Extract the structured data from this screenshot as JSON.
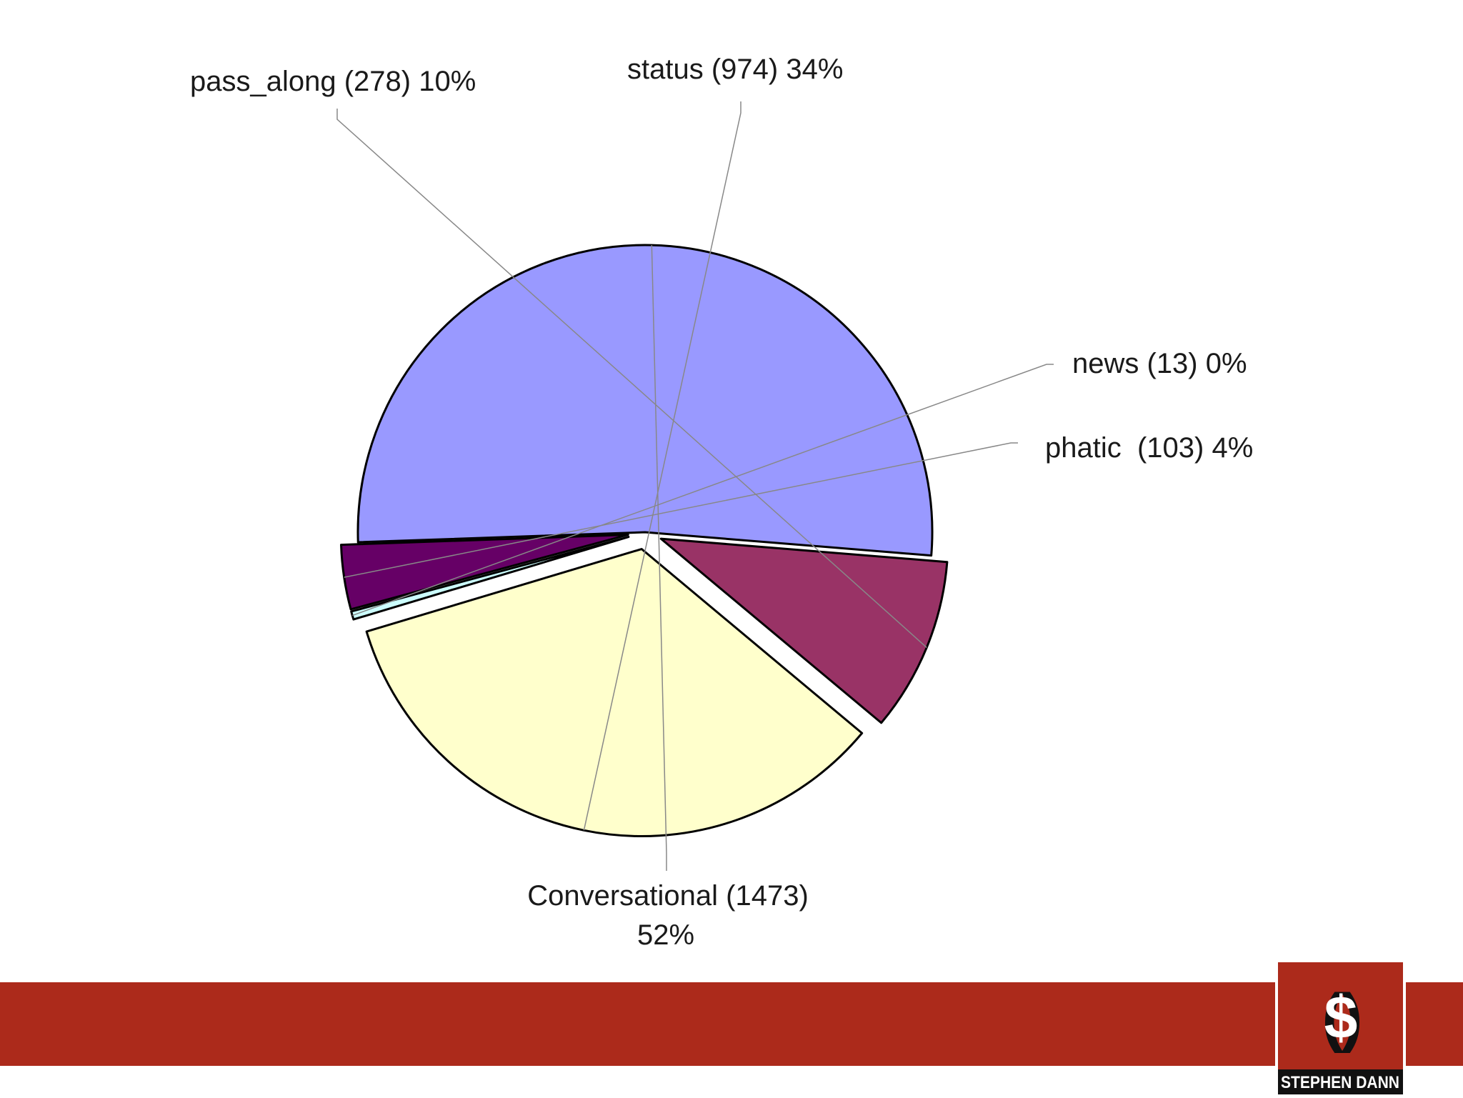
{
  "chart_data": {
    "type": "pie",
    "title": "",
    "slices": [
      {
        "name": "Conversational",
        "value": 1473,
        "percent": 52,
        "color": "#9999ff",
        "label_line1": "Conversational (1473)",
        "label_line2": "52%",
        "exploded": false
      },
      {
        "name": "pass_along",
        "value": 278,
        "percent": 10,
        "color": "#993366",
        "label_line1": "pass_along (278) 10%",
        "label_line2": "",
        "exploded": true
      },
      {
        "name": "status",
        "value": 974,
        "percent": 34,
        "color": "#ffffcc",
        "label_line1": "status (974) 34%",
        "label_line2": "",
        "exploded": true
      },
      {
        "name": "news",
        "value": 13,
        "percent": 0,
        "color": "#ccffff",
        "label_line1": "news (13) 0%",
        "label_line2": "",
        "exploded": true
      },
      {
        "name": "phatic",
        "value": 103,
        "percent": 4,
        "color": "#660066",
        "label_line1": "phatic  (103) 4%",
        "label_line2": "",
        "exploded": true
      }
    ]
  },
  "footer": {
    "bar_color": "#ac2a1b",
    "logo_symbol": "($)",
    "logo_text": "STEPHEN DANN"
  }
}
